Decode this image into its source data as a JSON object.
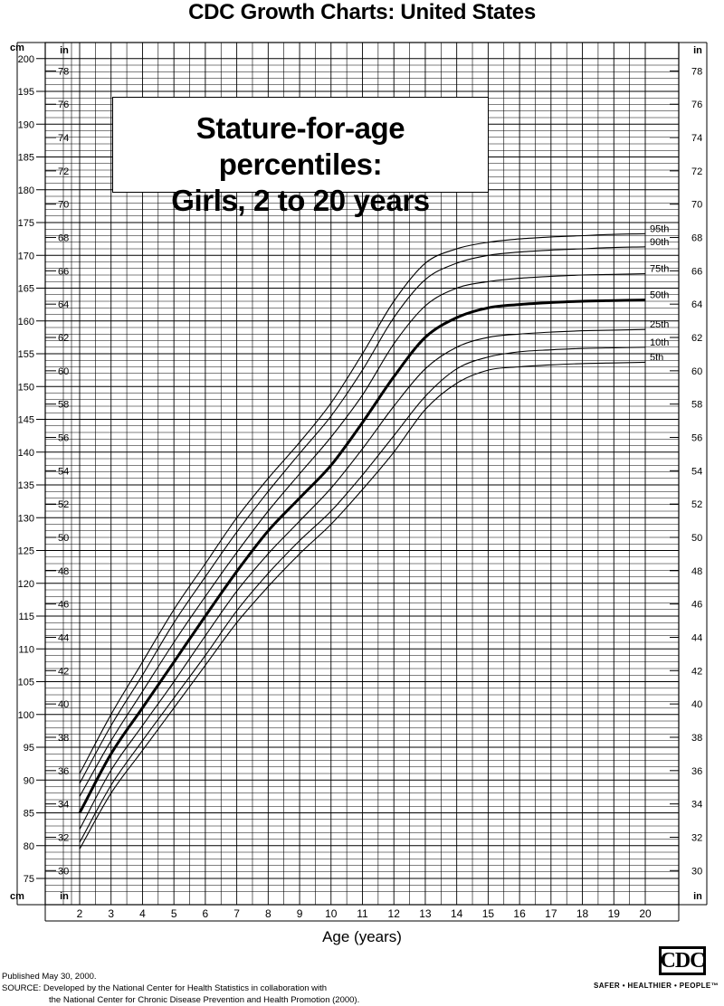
{
  "header": {
    "title": "CDC Growth Charts: United States"
  },
  "panel": {
    "line1": "Stature-for-age percentiles:",
    "line2": "Girls, 2 to 20 years"
  },
  "units": {
    "cm": "cm",
    "in": "in"
  },
  "footer": {
    "published": "Published May 30, 2000.",
    "source_line1": "SOURCE: Developed by the National Center for Health Statistics in collaboration with",
    "source_line2": "the National Center for Chronic Disease Prevention and Health Promotion (2000)."
  },
  "logo": {
    "text": "CDC",
    "tagline": "SAFER • HEALTHIER • PEOPLE™"
  },
  "chart_data": {
    "type": "line",
    "title": "Stature-for-age percentiles: Girls, 2 to 20 years",
    "xlabel": "Age (years)",
    "ylabel_left": "cm",
    "ylabel_right": "in",
    "xlim": [
      2,
      20
    ],
    "ylim_cm": [
      72,
      200
    ],
    "grid": true,
    "x_ticks": [
      2,
      3,
      4,
      5,
      6,
      7,
      8,
      9,
      10,
      11,
      12,
      13,
      14,
      15,
      16,
      17,
      18,
      19,
      20
    ],
    "cm_ticks": [
      75,
      80,
      85,
      90,
      95,
      100,
      105,
      110,
      115,
      120,
      125,
      130,
      135,
      140,
      145,
      150,
      155,
      160,
      165,
      170,
      175,
      180,
      185,
      190,
      195,
      200
    ],
    "in_ticks": [
      30,
      32,
      34,
      36,
      38,
      40,
      42,
      44,
      46,
      48,
      50,
      52,
      54,
      56,
      58,
      60,
      62,
      64,
      66,
      68,
      70,
      72,
      74,
      76,
      78
    ],
    "x": [
      2,
      3,
      4,
      5,
      6,
      7,
      8,
      9,
      10,
      11,
      12,
      13,
      14,
      15,
      16,
      17,
      18,
      19,
      20
    ],
    "series": [
      {
        "name": "95th",
        "values": [
          91.0,
          100.0,
          108.0,
          116.0,
          123.0,
          130.0,
          136.0,
          141.5,
          147.5,
          155.0,
          163.0,
          168.8,
          171.0,
          172.0,
          172.5,
          172.8,
          173.0,
          173.2,
          173.3
        ]
      },
      {
        "name": "90th",
        "values": [
          89.5,
          98.3,
          106.0,
          114.0,
          121.0,
          127.8,
          134.0,
          139.8,
          145.5,
          152.5,
          160.5,
          166.3,
          168.8,
          170.0,
          170.5,
          170.8,
          171.0,
          171.2,
          171.3
        ]
      },
      {
        "name": "75th",
        "values": [
          87.5,
          96.0,
          103.5,
          111.0,
          118.0,
          124.7,
          131.0,
          136.7,
          142.3,
          148.7,
          156.5,
          162.3,
          165.0,
          166.0,
          166.5,
          166.8,
          167.0,
          167.1,
          167.2
        ]
      },
      {
        "name": "50th",
        "values": [
          85.0,
          94.0,
          101.0,
          108.0,
          115.0,
          121.8,
          128.0,
          133.0,
          138.0,
          144.5,
          151.5,
          157.5,
          160.5,
          162.0,
          162.5,
          162.8,
          163.0,
          163.1,
          163.2
        ]
      },
      {
        "name": "25th",
        "values": [
          82.5,
          91.5,
          98.3,
          105.0,
          112.0,
          118.8,
          124.5,
          129.5,
          134.5,
          140.5,
          147.0,
          152.7,
          156.0,
          157.5,
          158.0,
          158.3,
          158.5,
          158.6,
          158.7
        ]
      },
      {
        "name": "10th",
        "values": [
          80.5,
          89.2,
          96.0,
          102.5,
          109.0,
          115.8,
          121.5,
          126.5,
          131.0,
          136.5,
          142.5,
          148.5,
          152.7,
          154.5,
          155.3,
          155.6,
          155.8,
          155.9,
          156.0
        ]
      },
      {
        "name": "5th",
        "values": [
          79.5,
          88.0,
          94.5,
          101.0,
          107.5,
          114.0,
          119.5,
          124.5,
          129.0,
          134.3,
          140.0,
          146.5,
          150.5,
          152.5,
          153.0,
          153.3,
          153.5,
          153.6,
          153.7
        ]
      }
    ]
  }
}
